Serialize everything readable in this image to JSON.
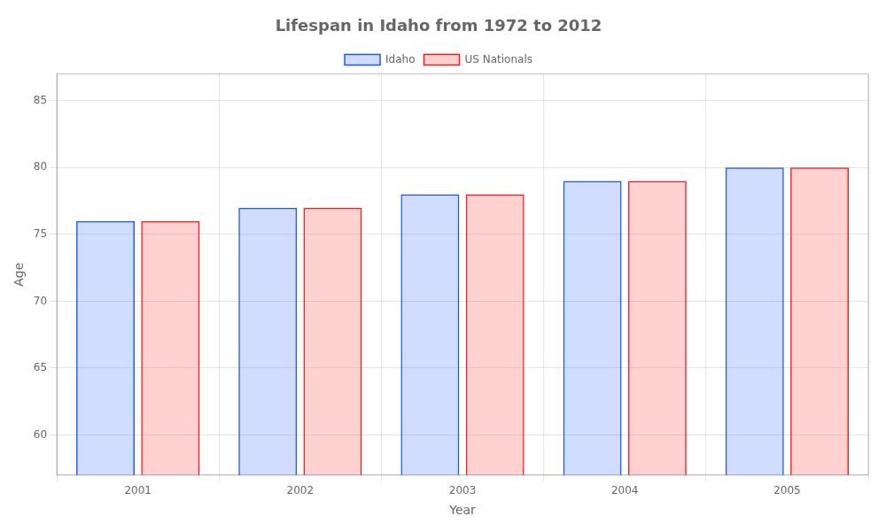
{
  "chart_data": {
    "type": "bar",
    "title": "Lifespan in Idaho from 1972 to 2012",
    "xlabel": "Year",
    "ylabel": "Age",
    "categories": [
      "2001",
      "2002",
      "2003",
      "2004",
      "2005"
    ],
    "series": [
      {
        "name": "Idaho",
        "color": "#1a56ff",
        "values": [
          76.0,
          77.0,
          78.0,
          79.0,
          80.0
        ]
      },
      {
        "name": "US Nationals",
        "color": "#ff1a1a",
        "values": [
          76.0,
          77.0,
          78.0,
          79.0,
          80.0
        ]
      }
    ],
    "ylim": [
      57,
      87
    ],
    "yticks": [
      60,
      65,
      70,
      75,
      80,
      85
    ],
    "grid": true,
    "legend": "top"
  }
}
